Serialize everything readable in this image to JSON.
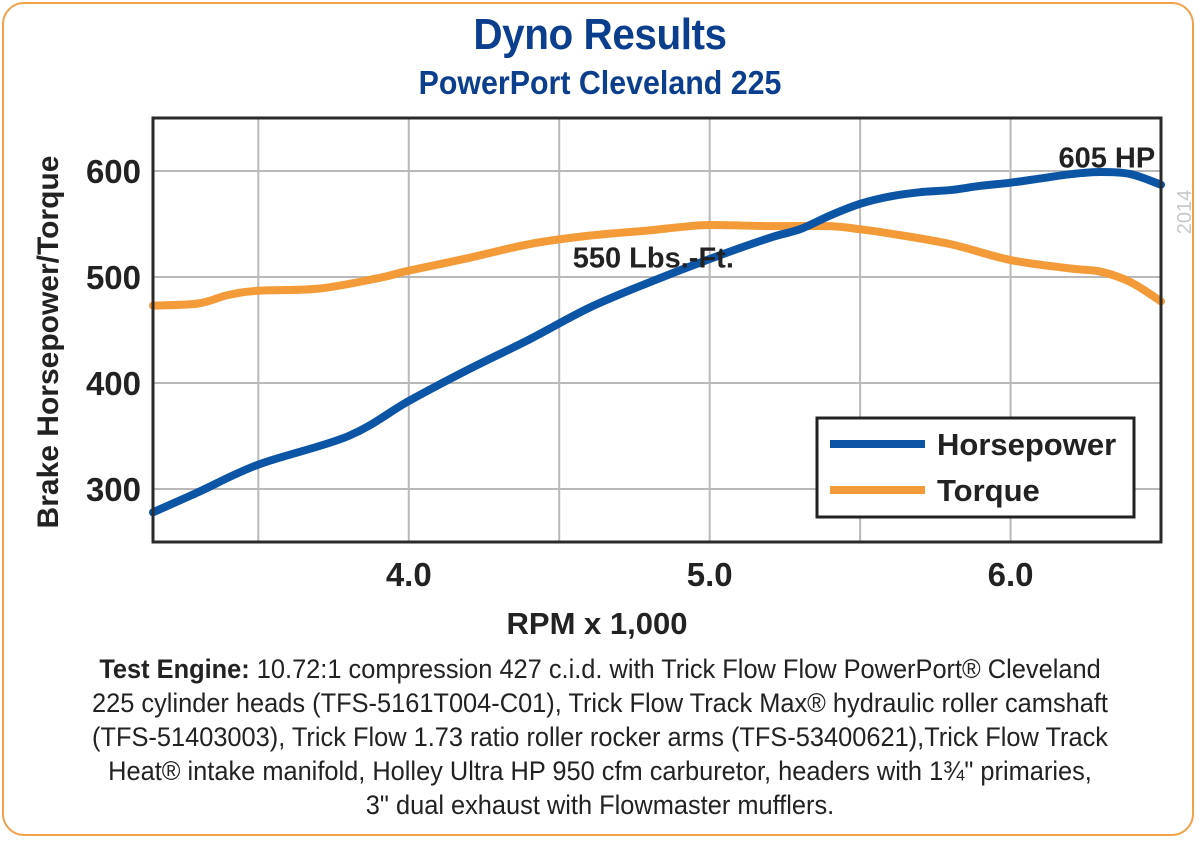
{
  "chart_data": {
    "type": "line",
    "title": "Dyno Results",
    "subtitle": "PowerPort Cleveland 225",
    "xlabel": "RPM x 1,000",
    "ylabel": "Brake Horsepower/Torque",
    "xlim": [
      3.15,
      6.5
    ],
    "ylim": [
      250,
      650
    ],
    "x_ticks": [
      3.5,
      4.0,
      4.5,
      5.0,
      5.5,
      6.0
    ],
    "x_tick_labels": [
      "",
      "4.0",
      "",
      "5.0",
      "",
      "6.0"
    ],
    "y_ticks": [
      300,
      400,
      500,
      600
    ],
    "y_tick_labels": [
      "300",
      "400",
      "500",
      "600"
    ],
    "grid": true,
    "legend_position": "bottom-right",
    "series": [
      {
        "name": "Horsepower",
        "color": "#0c55a5",
        "x": [
          3.15,
          3.3,
          3.5,
          3.8,
          4.0,
          4.2,
          4.4,
          4.6,
          4.8,
          5.0,
          5.2,
          5.3,
          5.4,
          5.5,
          5.6,
          5.7,
          5.8,
          5.9,
          6.0,
          6.1,
          6.2,
          6.3,
          6.4,
          6.5
        ],
        "y": [
          278,
          297,
          323,
          350,
          383,
          413,
          441,
          471,
          495,
          517,
          537,
          545,
          558,
          569,
          576,
          580,
          582,
          586,
          589,
          593,
          597,
          599,
          597,
          587
        ]
      },
      {
        "name": "Torque",
        "color": "#f29b38",
        "x": [
          3.15,
          3.3,
          3.4,
          3.5,
          3.7,
          3.9,
          4.0,
          4.2,
          4.4,
          4.6,
          4.8,
          4.9,
          5.0,
          5.2,
          5.4,
          5.5,
          5.6,
          5.8,
          6.0,
          6.2,
          6.3,
          6.4,
          6.5
        ],
        "y": [
          473,
          475,
          483,
          487,
          489,
          499,
          506,
          518,
          531,
          539,
          544,
          547,
          549,
          548,
          548,
          545,
          541,
          531,
          516,
          508,
          505,
          495,
          477
        ]
      }
    ],
    "annotations": [
      {
        "text": "605 HP",
        "x": 6.32,
        "y": 605
      },
      {
        "text": "550 Lbs.-Ft.",
        "x": 4.62,
        "y": 560
      }
    ],
    "watermark": "2014"
  },
  "footer": {
    "lead": "Test Engine:",
    "line1": " 10.72:1 compression 427 c.i.d. with Trick Flow Flow PowerPort® Cleveland",
    "line2": "225 cylinder heads (TFS-5161T004-C01), Trick Flow Track Max® hydraulic roller camshaft",
    "line3": "(TFS-51403003), Trick Flow 1.73 ratio roller rocker arms (TFS-53400621),Trick Flow Track",
    "line4": "Heat® intake manifold, Holley Ultra HP 950 cfm carburetor, headers with 1¾\" primaries,",
    "line5": "3\" dual exhaust with Flowmaster mufflers."
  }
}
